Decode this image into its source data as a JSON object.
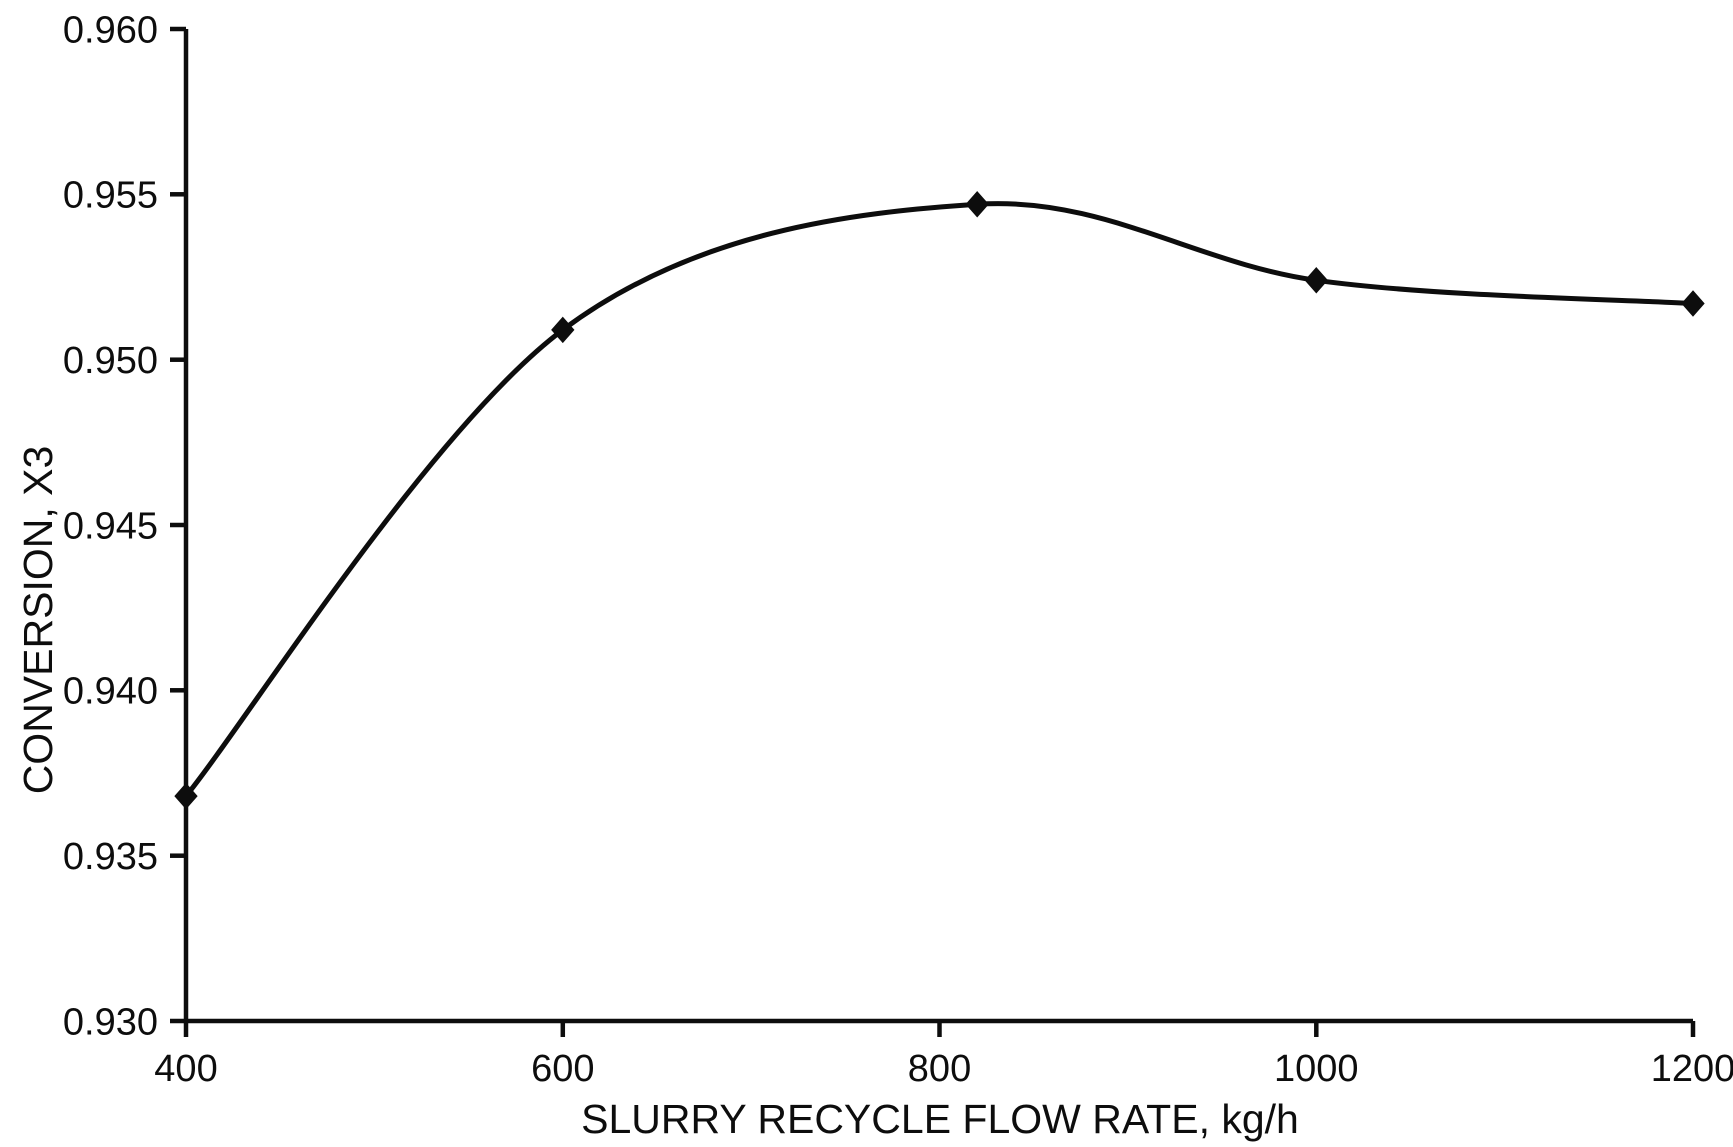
{
  "chart_data": {
    "type": "line",
    "title": "",
    "xlabel": "SLURRY RECYCLE FLOW RATE, kg/h",
    "ylabel": "CONVERSION, X3",
    "series": [
      {
        "name": "conversion-x3",
        "x": [
          400,
          600,
          820,
          1000,
          1200
        ],
        "y": [
          0.9368,
          0.9509,
          0.9547,
          0.9524,
          0.9517
        ],
        "marker": "diamond",
        "color": "#0d0d0d"
      }
    ],
    "xlim": [
      400,
      1200
    ],
    "ylim": [
      0.93,
      0.96
    ],
    "x_ticks": [
      400,
      600,
      800,
      1000,
      1200
    ],
    "x_tick_labels": [
      "400",
      "600",
      "800",
      "1000",
      "1200"
    ],
    "y_ticks": [
      0.93,
      0.935,
      0.94,
      0.945,
      0.95,
      0.955,
      0.96
    ],
    "y_tick_labels": [
      "0.930",
      "0.935",
      "0.940",
      "0.945",
      "0.950",
      "0.955",
      "0.960"
    ],
    "grid": false,
    "legend": null,
    "background": "#ffffff",
    "ink_color": "#0d0d0d"
  }
}
